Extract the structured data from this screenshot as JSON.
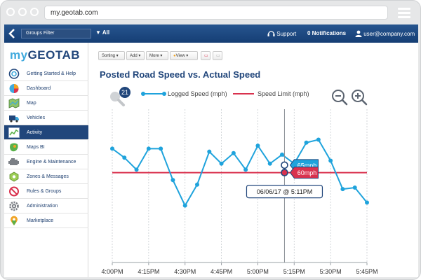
{
  "browser": {
    "url": "my.geotab.com"
  },
  "navbar": {
    "groups_filter": "Groups Filter",
    "all_label": "All",
    "support": "Support",
    "notifications": "0 Notifications",
    "user": "user@company.com"
  },
  "logo": {
    "my": "my",
    "brand": "GEOTAB"
  },
  "sidebar": {
    "items": [
      {
        "label": "Getting Started & Help",
        "icon": "help-icon"
      },
      {
        "label": "Dashboard",
        "icon": "pie-chart-icon"
      },
      {
        "label": "Map",
        "icon": "map-icon"
      },
      {
        "label": "Vehicles",
        "icon": "truck-icon"
      },
      {
        "label": "Activity",
        "icon": "activity-chart-icon",
        "active": true
      },
      {
        "label": "Maps BI",
        "icon": "maps-bi-icon"
      },
      {
        "label": "Engine & Maintenance",
        "icon": "engine-icon"
      },
      {
        "label": "Zones & Messages",
        "icon": "zones-icon"
      },
      {
        "label": "Rules & Groups",
        "icon": "rules-icon"
      },
      {
        "label": "Administration",
        "icon": "gear-icon"
      },
      {
        "label": "Marketplace",
        "icon": "marketplace-pin-icon"
      }
    ]
  },
  "toolbar": {
    "sorting": "Sorting",
    "add": "Add",
    "more": "More",
    "view": "View"
  },
  "chart_title": "Posted Road Speed vs. Actual Speed",
  "chart_data": {
    "type": "line",
    "title": "Posted Road Speed vs. Actual Speed",
    "legend": {
      "placement": "top",
      "position_count": "21"
    },
    "x_ticks": [
      "4:00PM",
      "4:15PM",
      "4:30PM",
      "4:45PM",
      "5:00PM",
      "5:15PM",
      "5:30PM",
      "5:45PM"
    ],
    "xlim_minutes_after_4pm": [
      0,
      105
    ],
    "ylim": [
      0,
      100
    ],
    "series": [
      {
        "name": "Logged Speed (mph)",
        "color": "#1fa3dc",
        "x_minutes_after_4pm": [
          0,
          5,
          10,
          15,
          20,
          25,
          30,
          35,
          40,
          45,
          50,
          55,
          60,
          65,
          70,
          75,
          80,
          85,
          90,
          95,
          100,
          105
        ],
        "y": [
          76,
          70,
          62,
          76,
          76,
          55,
          38,
          52,
          74,
          66,
          73,
          62,
          78,
          66,
          72,
          66,
          80,
          82,
          68,
          49,
          50,
          40
        ]
      },
      {
        "name": "Speed Limit (mph)",
        "color": "#d9324e",
        "x_minutes_after_4pm": [
          0,
          105
        ],
        "y": [
          60,
          60
        ]
      }
    ],
    "cursor": {
      "timestamp": "06/06/17 @ 5:11PM",
      "logged_speed_label": "65mph",
      "speed_limit_label": "60mph"
    },
    "grid": "vertical dotted",
    "zoom_controls": [
      "zoom-out",
      "zoom-in"
    ]
  }
}
